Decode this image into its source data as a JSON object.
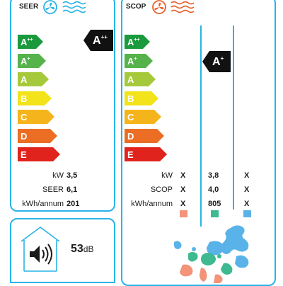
{
  "cooling": {
    "label": "SEER",
    "classes": [
      {
        "letter": "A",
        "sup": "++",
        "color": "#1a9a3c"
      },
      {
        "letter": "A",
        "sup": "+",
        "color": "#56b24a"
      },
      {
        "letter": "A",
        "sup": "",
        "color": "#a6c93b"
      },
      {
        "letter": "B",
        "sup": "",
        "color": "#f2e31a"
      },
      {
        "letter": "C",
        "sup": "",
        "color": "#f5b41c"
      },
      {
        "letter": "D",
        "sup": "",
        "color": "#ec6d24"
      },
      {
        "letter": "E",
        "sup": "",
        "color": "#e0231c"
      }
    ],
    "rating": {
      "letter": "A",
      "sup": "++"
    },
    "rows": [
      {
        "label": "kW",
        "value": "3,5"
      },
      {
        "label": "SEER",
        "value": "6,1"
      },
      {
        "label": "kWh/annum",
        "value": "201"
      }
    ]
  },
  "heating": {
    "label": "SCOP",
    "classes": [
      {
        "letter": "A",
        "sup": "++",
        "color": "#1a9a3c"
      },
      {
        "letter": "A",
        "sup": "+",
        "color": "#56b24a"
      },
      {
        "letter": "A",
        "sup": "",
        "color": "#a6c93b"
      },
      {
        "letter": "B",
        "sup": "",
        "color": "#f2e31a"
      },
      {
        "letter": "C",
        "sup": "",
        "color": "#f5b41c"
      },
      {
        "letter": "D",
        "sup": "",
        "color": "#ec6d24"
      },
      {
        "letter": "E",
        "sup": "",
        "color": "#e0231c"
      }
    ],
    "rating": {
      "letter": "A",
      "sup": "+"
    },
    "rows": [
      {
        "label": "kW",
        "warmer": "X",
        "average": "3,8",
        "colder": "X"
      },
      {
        "label": "SCOP",
        "warmer": "X",
        "average": "4,0",
        "colder": "X"
      },
      {
        "label": "kWh/annum",
        "warmer": "X",
        "average": "805",
        "colder": "X"
      }
    ],
    "zone_colors": {
      "warmer": "#f2937a",
      "average": "#3fb98f",
      "colder": "#5ab3e8"
    }
  },
  "noise": {
    "value": "53",
    "unit": "dB"
  },
  "icons": [
    "fan-icon",
    "heat-waves-icon",
    "cold-waves-icon",
    "speaker-icon",
    "europe-map-icon"
  ]
}
